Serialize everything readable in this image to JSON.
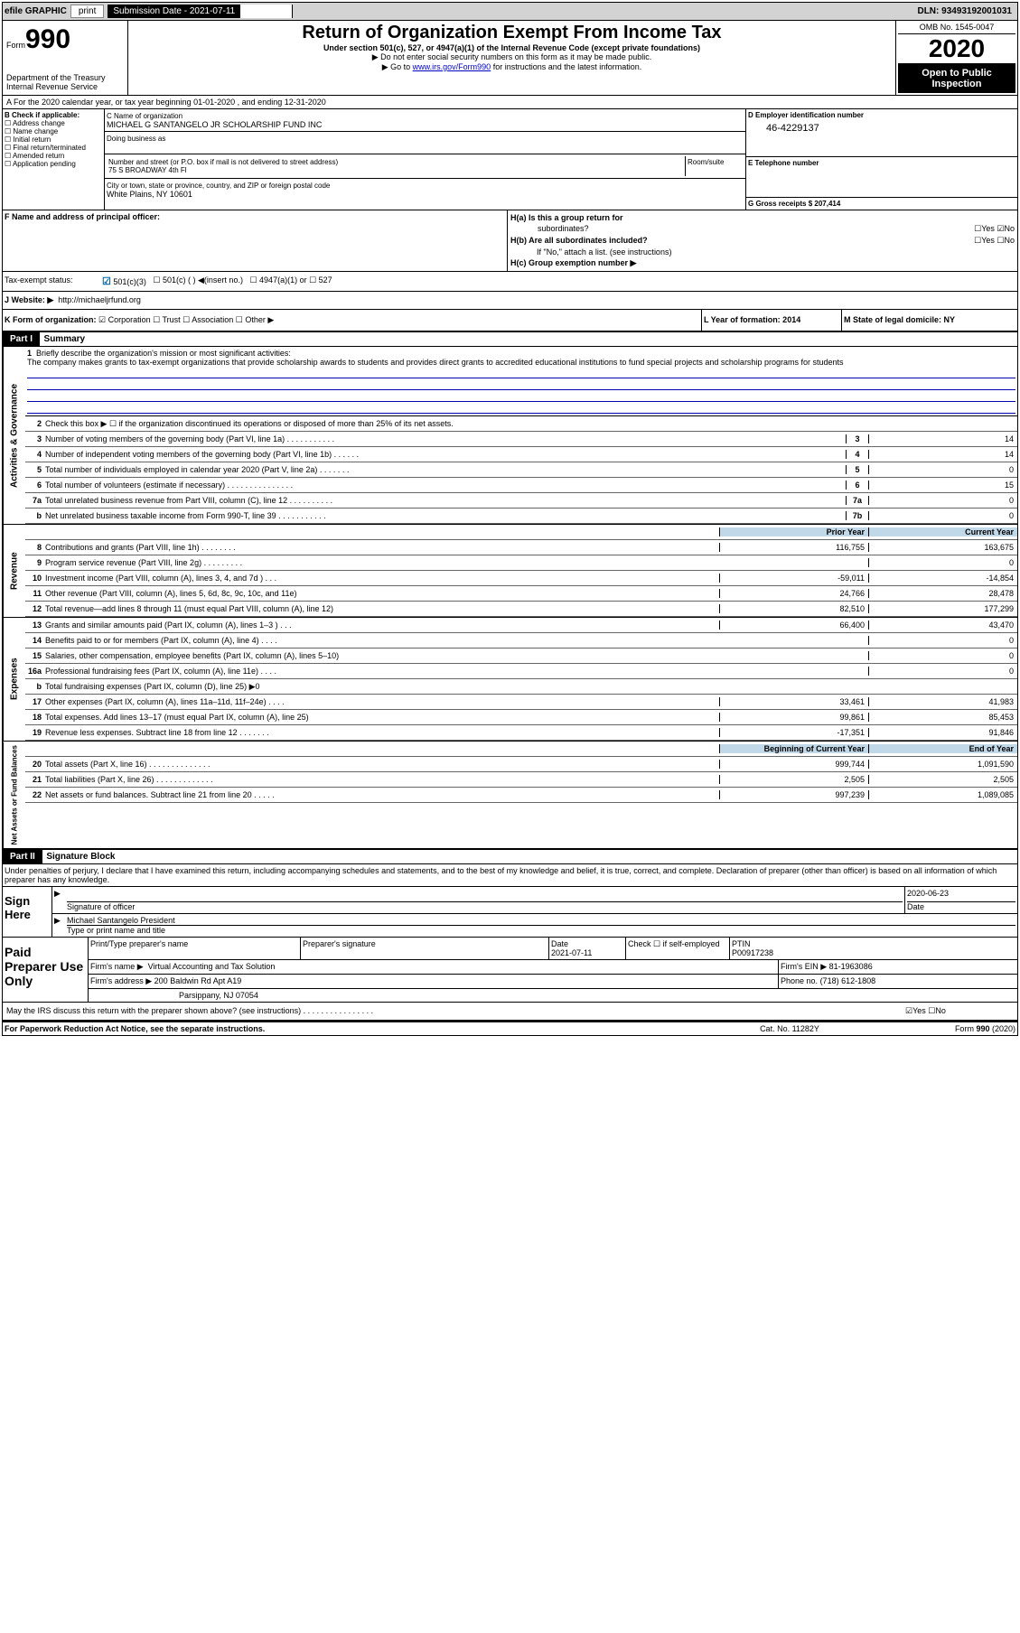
{
  "topbar": {
    "efile": "efile GRAPHIC",
    "print": "print",
    "subdate_label": "Submission Date - 2021-07-11",
    "dln": "DLN: 93493192001031"
  },
  "header": {
    "form_word": "Form",
    "form_num": "990",
    "dept": "Department of the Treasury\nInternal Revenue Service",
    "title": "Return of Organization Exempt From Income Tax",
    "sub1": "Under section 501(c), 527, or 4947(a)(1) of the Internal Revenue Code (except private foundations)",
    "sub2": "▶ Do not enter social security numbers on this form as it may be made public.",
    "sub3a": "▶ Go to ",
    "sub3_link": "www.irs.gov/Form990",
    "sub3b": " for instructions and the latest information.",
    "omb": "OMB No. 1545-0047",
    "year": "2020",
    "open": "Open to Public Inspection"
  },
  "lineA": "A For the 2020 calendar year, or tax year beginning 01-01-2020    , and ending 12-31-2020",
  "blockB": {
    "label": "B Check if applicable:",
    "opts": [
      "Address change",
      "Name change",
      "Initial return",
      "Final return/terminated",
      "Amended return",
      "Application pending"
    ]
  },
  "blockC": {
    "label_name": "C Name of organization",
    "name": "MICHAEL G SANTANGELO JR SCHOLARSHIP FUND INC",
    "dba_label": "Doing business as",
    "addr_label": "Number and street (or P.O. box if mail is not delivered to street address)",
    "room_label": "Room/suite",
    "addr": "75 S BROADWAY 4th Fl",
    "city_label": "City or town, state or province, country, and ZIP or foreign postal code",
    "city": "White Plains, NY  10601"
  },
  "blockD": {
    "label": "D Employer identification number",
    "ein": "46-4229137",
    "telephone_label": "E Telephone number",
    "gross_label": "G Gross receipts $ 207,414"
  },
  "blockF": {
    "label": "F  Name and address of principal officer:"
  },
  "blockH": {
    "ha_label": "H(a)  Is this a group return for",
    "ha_sub": "subordinates?",
    "ha_yn": "☐Yes ☑No",
    "hb_label": "H(b)  Are all subordinates included?",
    "hb_yn": "☐Yes ☐No",
    "hb_note": "If \"No,\" attach a list. (see instructions)",
    "hc_label": "H(c)  Group exemption number ▶"
  },
  "taxStatus": {
    "label": "Tax-exempt status:",
    "s1": "501(c)(3)",
    "s2": "501(c) (  ) ◀(insert no.)",
    "s3": "4947(a)(1) or",
    "s4": "527"
  },
  "lineJ": {
    "label": "J    Website: ▶",
    "url": "http://michaeljrfund.org"
  },
  "lineK": {
    "label": "K Form of organization:",
    "opts": "☑ Corporation  ☐ Trust  ☐ Association  ☐ Other ▶",
    "l_label": "L Year of formation: 2014",
    "m_label": "M State of legal domicile: NY"
  },
  "part1": {
    "header": "Part I",
    "title": "Summary"
  },
  "mission": {
    "num": "1",
    "label": "Briefly describe the organization's mission or most significant activities:",
    "text": "The company makes grants to tax-exempt organizations that provide scholarship awards to students and provides direct grants to accredited educational institutions to fund special projects and scholarship programs for students"
  },
  "sideLabels": {
    "gov": "Activities & Governance",
    "rev": "Revenue",
    "exp": "Expenses",
    "net": "Net Assets or Fund Balances"
  },
  "govRows": [
    {
      "n": "2",
      "t": "Check this box ▶ ☐  if the organization discontinued its operations or disposed of more than 25% of its net assets."
    },
    {
      "n": "3",
      "t": "Number of voting members of the governing body (Part VI, line 1a)  .  .  .  .  .  .  .  .  .  .  .",
      "bn": "3",
      "v": "14"
    },
    {
      "n": "4",
      "t": "Number of independent voting members of the governing body (Part VI, line 1b)  .  .  .  .  .  .",
      "bn": "4",
      "v": "14"
    },
    {
      "n": "5",
      "t": "Total number of individuals employed in calendar year 2020 (Part V, line 2a)  .  .  .  .  .  .  .",
      "bn": "5",
      "v": "0"
    },
    {
      "n": "6",
      "t": "Total number of volunteers (estimate if necessary)   .  .  .  .  .  .  .  .  .  .  .  .  .  .  .",
      "bn": "6",
      "v": "15"
    },
    {
      "n": "7a",
      "t": "Total unrelated business revenue from Part VIII, column (C), line 12  .  .  .  .  .  .  .  .  .  .",
      "bn": "7a",
      "v": "0"
    },
    {
      "n": "b",
      "t": "Net unrelated business taxable income from Form 990-T, line 39   .  .  .  .  .  .  .  .  .  .  .",
      "bn": "7b",
      "v": "0"
    }
  ],
  "colHeaders": {
    "prior": "Prior Year",
    "current": "Current Year"
  },
  "revRows": [
    {
      "n": "8",
      "t": "Contributions and grants (Part VIII, line 1h)   .  .  .  .  .  .  .  .",
      "p": "116,755",
      "c": "163,675"
    },
    {
      "n": "9",
      "t": "Program service revenue (Part VIII, line 2g)  .  .  .  .  .  .  .  .  .",
      "p": "",
      "c": "0"
    },
    {
      "n": "10",
      "t": "Investment income (Part VIII, column (A), lines 3, 4, and 7d )   .  .  .",
      "p": "-59,011",
      "c": "-14,854"
    },
    {
      "n": "11",
      "t": "Other revenue (Part VIII, column (A), lines 5, 6d, 8c, 9c, 10c, and 11e)",
      "p": "24,766",
      "c": "28,478"
    },
    {
      "n": "12",
      "t": "Total revenue—add lines 8 through 11 (must equal Part VIII, column (A), line 12)",
      "p": "82,510",
      "c": "177,299"
    }
  ],
  "expRows": [
    {
      "n": "13",
      "t": "Grants and similar amounts paid (Part IX, column (A), lines 1–3 )  .  .  .",
      "p": "66,400",
      "c": "43,470"
    },
    {
      "n": "14",
      "t": "Benefits paid to or for members (Part IX, column (A), line 4)   .  .  .  .",
      "p": "",
      "c": "0"
    },
    {
      "n": "15",
      "t": "Salaries, other compensation, employee benefits (Part IX, column (A), lines 5–10)",
      "p": "",
      "c": "0"
    },
    {
      "n": "16a",
      "t": "Professional fundraising fees (Part IX, column (A), line 11e)   .  .  .  .",
      "p": "",
      "c": "0"
    },
    {
      "n": "b",
      "t": "Total fundraising expenses (Part IX, column (D), line 25) ▶0",
      "grey": true
    },
    {
      "n": "17",
      "t": "Other expenses (Part IX, column (A), lines 11a–11d, 11f–24e)  .  .  .  .",
      "p": "33,461",
      "c": "41,983"
    },
    {
      "n": "18",
      "t": "Total expenses. Add lines 13–17 (must equal Part IX, column (A), line 25)",
      "p": "99,861",
      "c": "85,453"
    },
    {
      "n": "19",
      "t": "Revenue less expenses. Subtract line 18 from line 12  .  .  .  .  .  .  .",
      "p": "-17,351",
      "c": "91,846"
    }
  ],
  "netHeaders": {
    "beg": "Beginning of Current Year",
    "end": "End of Year"
  },
  "netRows": [
    {
      "n": "20",
      "t": "Total assets (Part X, line 16)  .  .  .  .  .  .  .  .  .  .  .  .  .  .",
      "p": "999,744",
      "c": "1,091,590"
    },
    {
      "n": "21",
      "t": "Total liabilities (Part X, line 26)  .  .  .  .  .  .  .  .  .  .  .  .  .",
      "p": "2,505",
      "c": "2,505"
    },
    {
      "n": "22",
      "t": "Net assets or fund balances. Subtract line 21 from line 20  .  .  .  .  .",
      "p": "997,239",
      "c": "1,089,085"
    }
  ],
  "part2": {
    "header": "Part II",
    "title": "Signature Block",
    "decl": "Under penalties of perjury, I declare that I have examined this return, including accompanying schedules and statements, and to the best of my knowledge and belief, it is true, correct, and complete. Declaration of preparer (other than officer) is based on all information of which preparer has any knowledge."
  },
  "sign": {
    "label": "Sign Here",
    "sig_label": "Signature of officer",
    "date": "2020-06-23",
    "date_label": "Date",
    "name": "Michael Santangelo  President",
    "name_label": "Type or print name and title"
  },
  "paid": {
    "label": "Paid Preparer Use Only",
    "h1": "Print/Type preparer's name",
    "h2": "Preparer's signature",
    "h3_label": "Date",
    "h3": "2021-07-11",
    "h4": "Check ☐  if self-employed",
    "h5_label": "PTIN",
    "h5": "P00917238",
    "firm_label": "Firm's name     ▶",
    "firm": "Virtual Accounting and Tax Solution",
    "ein_label": "Firm's EIN ▶",
    "ein": "81-1963086",
    "addr_label": "Firm's address ▶",
    "addr1": "200 Baldwin Rd Apt A19",
    "addr2": "Parsippany, NJ  07054",
    "phone_label": "Phone no.",
    "phone": "(718) 612-1808",
    "discuss": "May the IRS discuss this return with the preparer shown above? (see instructions)   .  .  .  .  .  .  .  .  .  .  .  .  .  .  .  .",
    "discuss_yn": "☑Yes  ☐No"
  },
  "footer": {
    "left": "For Paperwork Reduction Act Notice, see the separate instructions.",
    "center": "Cat. No. 11282Y",
    "right": "Form 990 (2020)"
  }
}
